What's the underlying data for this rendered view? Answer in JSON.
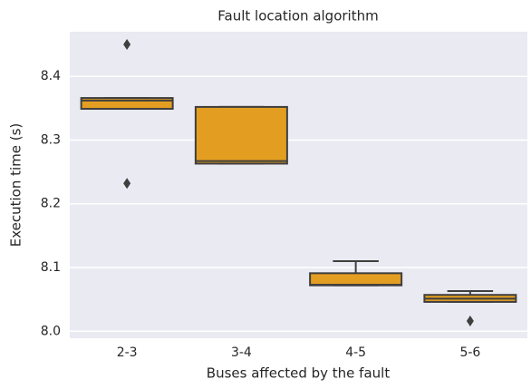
{
  "chart_data": {
    "type": "box",
    "title": "Fault location algorithm",
    "x_label": "Buses affected by the fault",
    "y_label": "Execution time (s)",
    "categories": [
      "2-3",
      "3-4",
      "4-5",
      "5-6"
    ],
    "boxes": [
      {
        "min": 8.349,
        "q1": 8.349,
        "median": 8.362,
        "q3": 8.366,
        "max": 8.366,
        "outliers": [
          8.45,
          8.232
        ]
      },
      {
        "min": 8.263,
        "q1": 8.263,
        "median": 8.267,
        "q3": 8.352,
        "max": 8.352,
        "outliers": []
      },
      {
        "min": 8.072,
        "q1": 8.072,
        "median": 8.073,
        "q3": 8.091,
        "max": 8.11,
        "outliers": []
      },
      {
        "min": 8.046,
        "q1": 8.046,
        "median": 8.051,
        "q3": 8.057,
        "max": 8.063,
        "outliers": [
          8.016
        ]
      }
    ],
    "color": "#e39e21",
    "ylim": [
      7.989,
      8.47
    ],
    "yticks": [
      {
        "value": 8.0,
        "label": "8.0"
      },
      8.1,
      8.2,
      8.3,
      8.4
    ],
    "grid": true
  }
}
